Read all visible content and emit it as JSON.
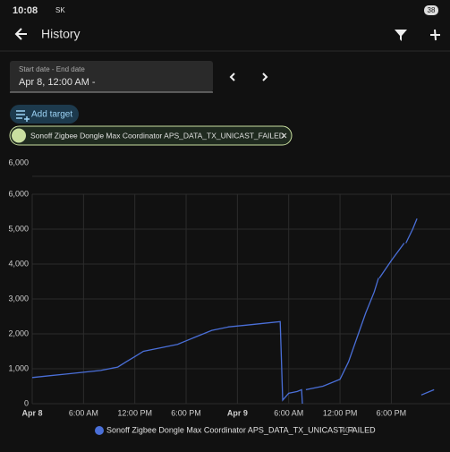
{
  "status_bar": {
    "time": "10:08",
    "carrier": "SK",
    "battery": "38"
  },
  "header": {
    "title": "History"
  },
  "date_picker": {
    "label": "Start date - End date",
    "value": "Apr 8, 12:00 AM -"
  },
  "add_target": "Add target",
  "chip": "Sonoff Zigbee Dongle Max Coordinator APS_DATA_TX_UNICAST_FAILED",
  "upper_axis_label": {
    "value": 6000,
    "label": "6,000"
  },
  "chart_data": {
    "type": "line",
    "x": [
      0,
      2,
      4,
      6,
      8,
      10,
      11,
      12,
      13,
      15,
      17,
      18,
      19,
      20,
      21,
      23,
      25,
      27,
      29,
      29.3,
      30,
      31,
      31.5,
      31.6,
      null,
      32,
      34,
      36,
      37,
      38,
      39,
      40,
      40.5,
      null,
      40.6,
      42,
      43.5,
      null,
      43.7,
      44.5,
      45,
      null,
      45.5,
      47
    ],
    "series": [
      {
        "name": "Sonoff Zigbee Dongle Max Coordinator APS_DATA_TX_UNICAST_FAILED",
        "color": "#4a6fd8",
        "values": [
          750,
          800,
          850,
          900,
          950,
          1050,
          1200,
          1350,
          1500,
          1600,
          1700,
          1800,
          1900,
          2000,
          2100,
          2200,
          2250,
          2300,
          2350,
          100,
          300,
          350,
          400,
          0,
          null,
          400,
          500,
          700,
          1200,
          1900,
          2600,
          3200,
          3600,
          null,
          3600,
          4100,
          4600,
          null,
          4600,
          5000,
          5300,
          null,
          250,
          400
        ],
        "current": 404
      }
    ],
    "xlim": [
      0,
      47.5
    ],
    "xticks": [
      {
        "value": 0,
        "label": "Apr 8"
      },
      {
        "value": 6,
        "label": "6:00 AM"
      },
      {
        "value": 12,
        "label": "12:00 PM"
      },
      {
        "value": 18,
        "label": "6:00 PM"
      },
      {
        "value": 24,
        "label": "Apr 9"
      },
      {
        "value": 30,
        "label": "6:00 AM"
      },
      {
        "value": 36,
        "label": "12:00 PM"
      },
      {
        "value": 42,
        "label": "6:00 PM"
      }
    ],
    "ylim": [
      0,
      6000
    ],
    "yticks": [
      0,
      {
        "value": 1000,
        "label": "1,000"
      },
      {
        "value": 2000,
        "label": "2,000"
      },
      {
        "value": 3000,
        "label": "3,000"
      },
      {
        "value": 4000,
        "label": "4,000"
      },
      {
        "value": 5000,
        "label": "5,000"
      },
      {
        "value": 6000,
        "label": "6,000"
      }
    ],
    "grid": true
  }
}
